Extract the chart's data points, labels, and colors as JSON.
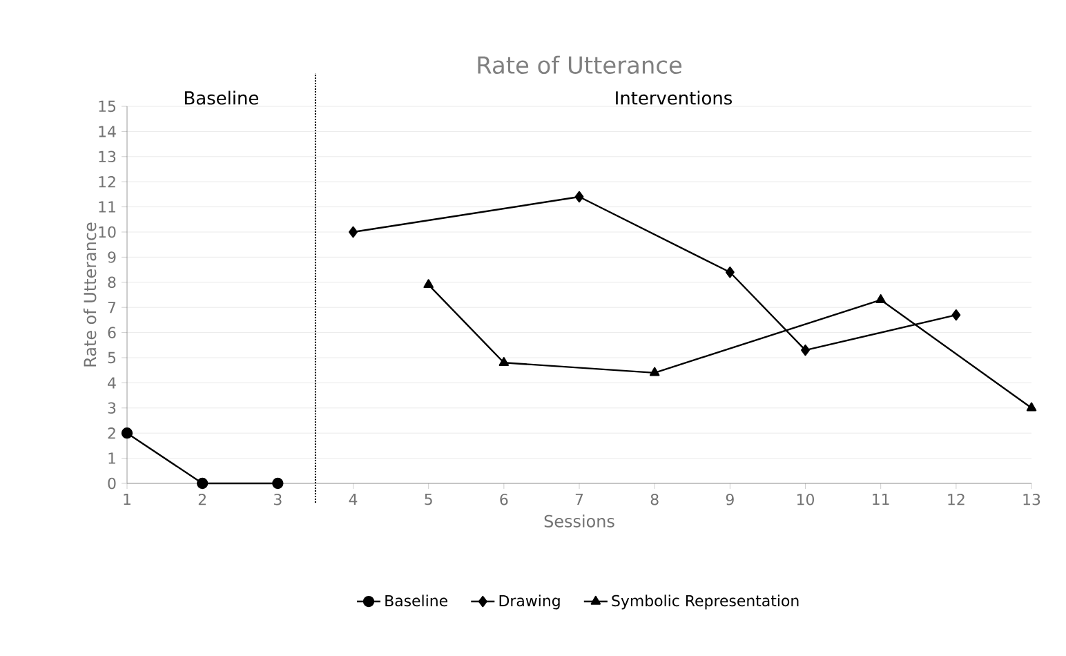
{
  "chart_data": {
    "type": "line",
    "title": "Rate of Utterance",
    "xlabel": "Sessions",
    "ylabel": "Rate of Utterance",
    "xlim": [
      1,
      13
    ],
    "xticks": [
      1,
      2,
      3,
      4,
      5,
      6,
      7,
      8,
      9,
      10,
      11,
      12,
      13
    ],
    "ylim": [
      0,
      15
    ],
    "yticks": [
      0,
      1,
      2,
      3,
      4,
      5,
      6,
      7,
      8,
      9,
      10,
      11,
      12,
      13,
      14,
      15
    ],
    "grid": "y",
    "legend": "bottom",
    "line_style": "solid",
    "ref_lines": [
      {
        "axis": "x",
        "value": 3.5,
        "line_style": "dotted",
        "color": "#000000"
      }
    ],
    "annotations": [
      "Baseline",
      "Interventions"
    ],
    "series": [
      {
        "name": "Baseline",
        "color": "#000000",
        "marker": "circle",
        "x": [
          1,
          2,
          3
        ],
        "values": [
          2,
          0,
          0
        ]
      },
      {
        "name": "Drawing",
        "color": "#000000",
        "marker": "diamond",
        "x": [
          4,
          7,
          9,
          10,
          12
        ],
        "values": [
          10,
          11.4,
          8.4,
          5.3,
          6.7
        ]
      },
      {
        "name": "Symbolic Representation",
        "color": "#000000",
        "marker": "triangle",
        "x": [
          5,
          6,
          8,
          11,
          13
        ],
        "values": [
          7.9,
          4.8,
          4.4,
          7.3,
          3.0
        ]
      }
    ]
  }
}
